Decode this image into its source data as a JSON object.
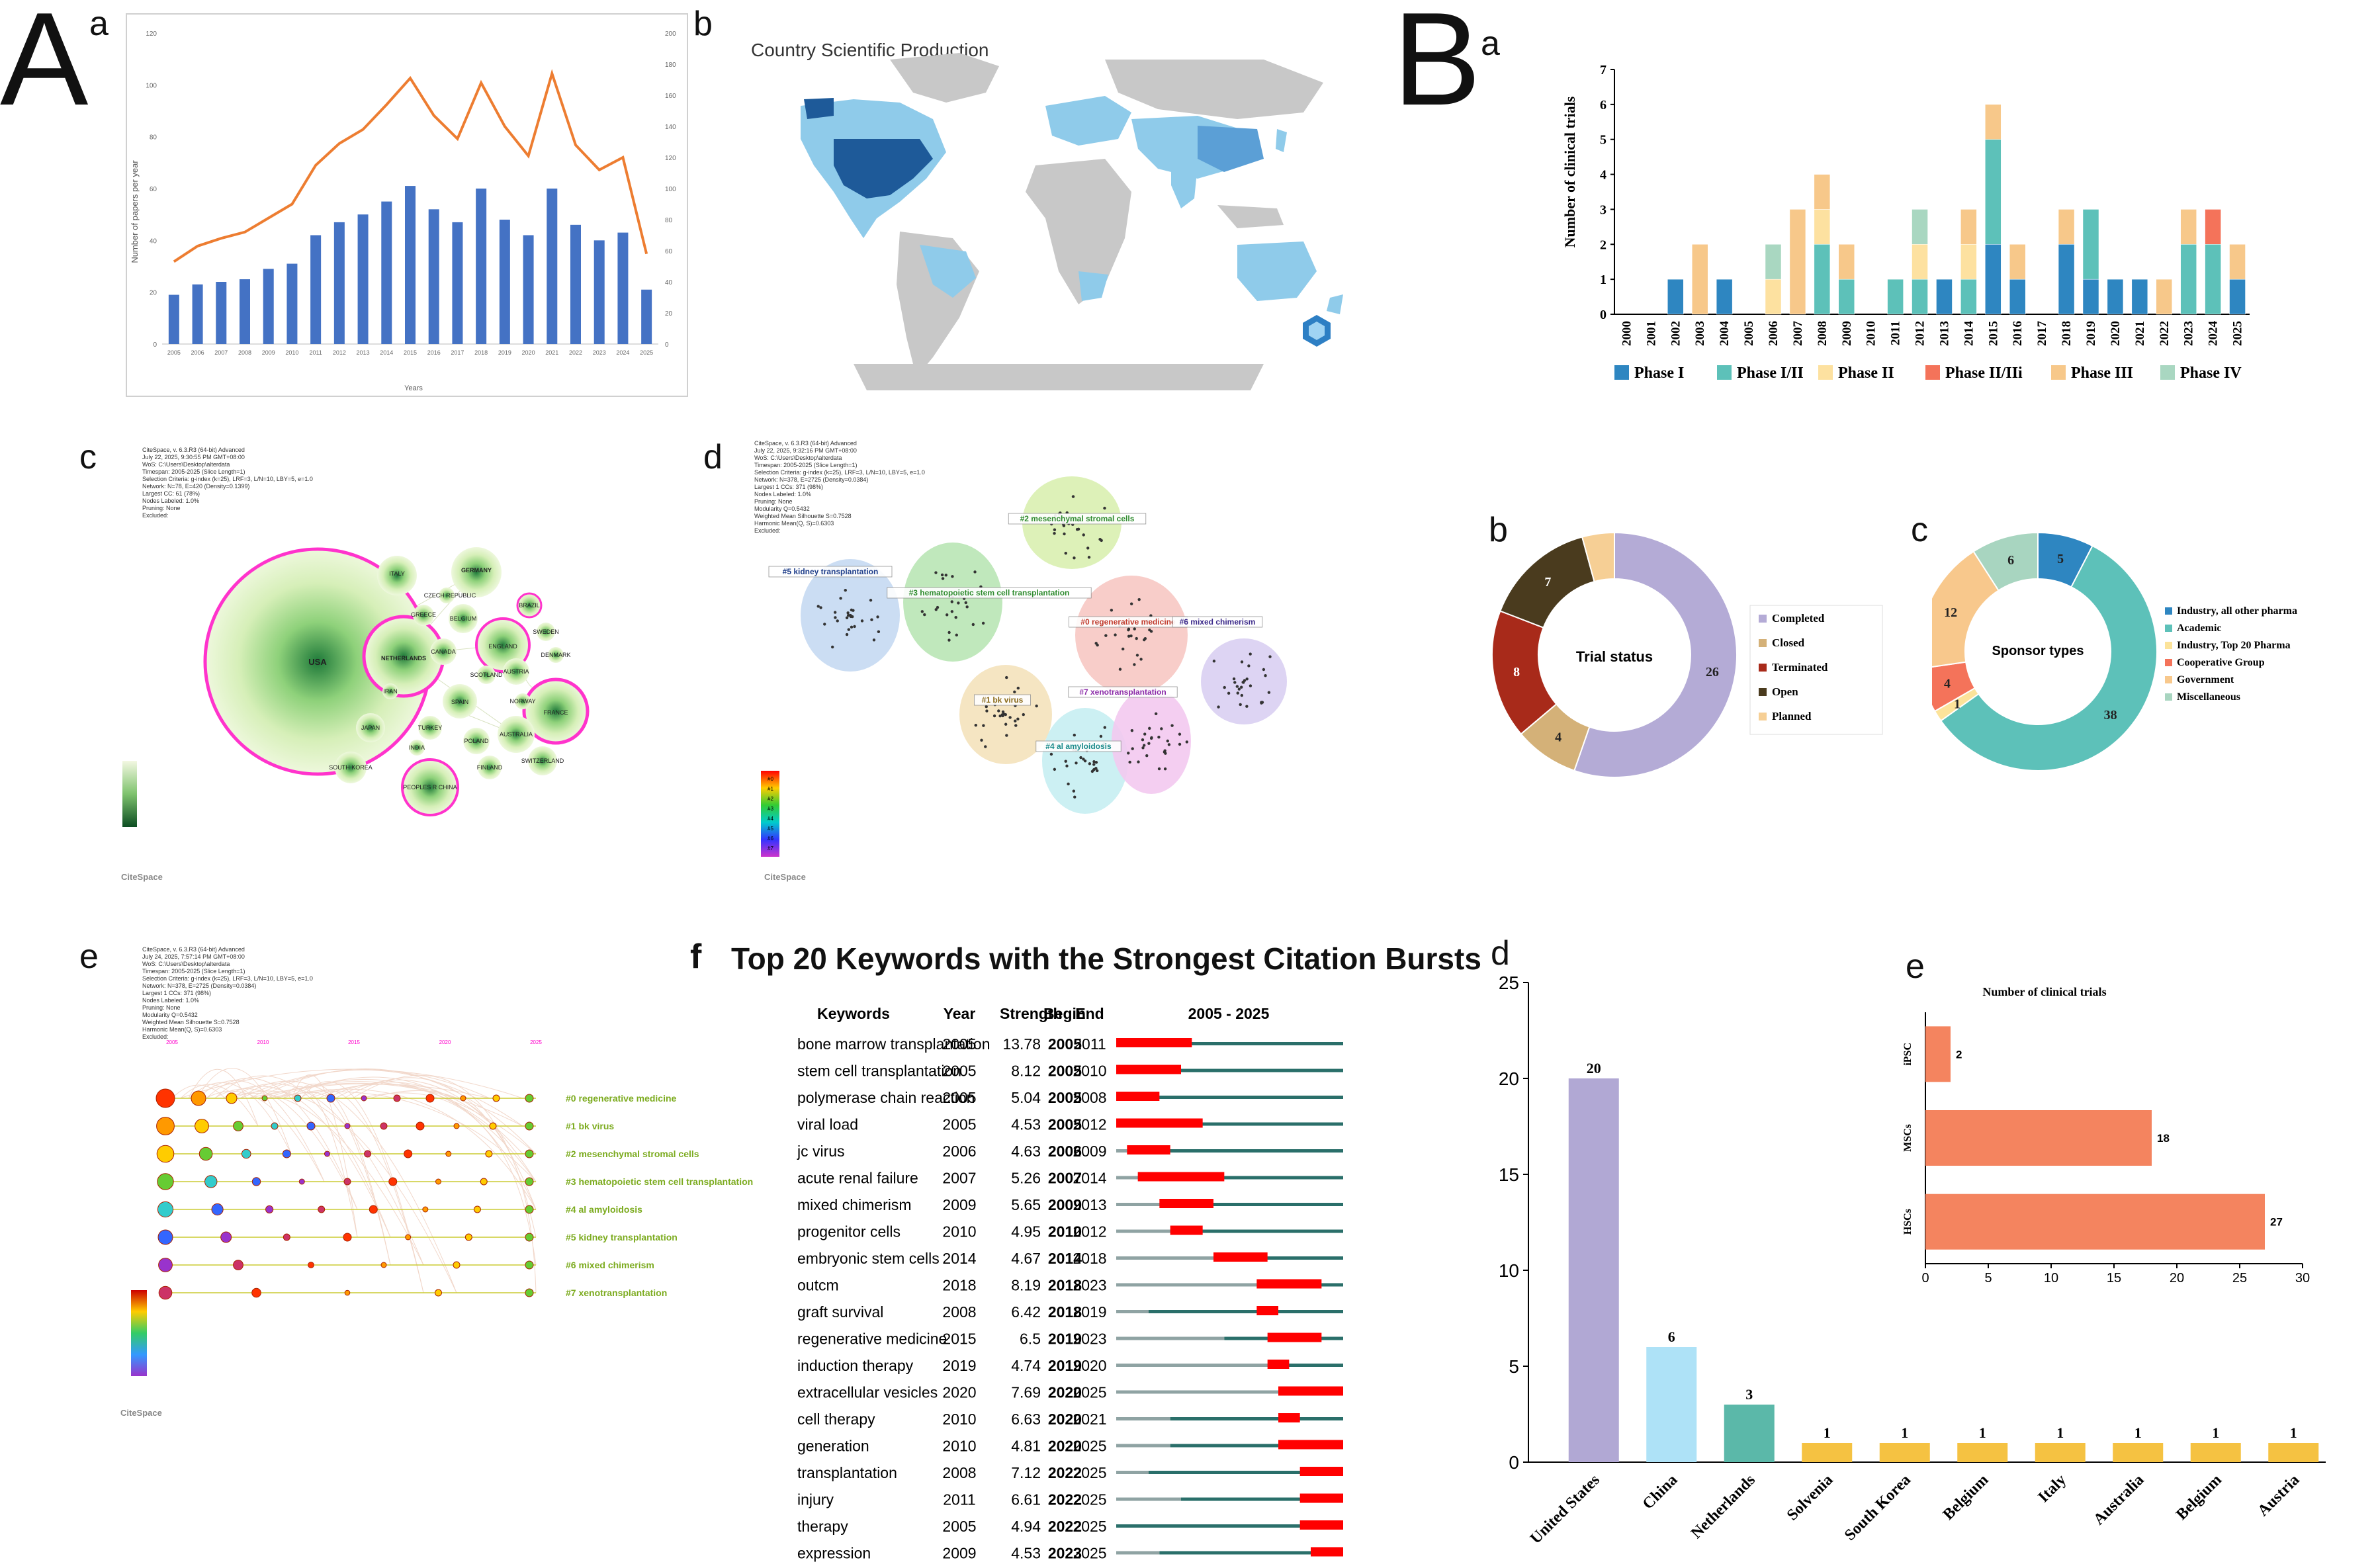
{
  "panels": {
    "A": "A",
    "B": "B",
    "a": "a",
    "b": "b",
    "c": "c",
    "d": "d",
    "e": "e",
    "f": "f",
    "Ba": "a",
    "Bb": "b",
    "Bc": "c",
    "Bd": "d",
    "Be": "e"
  },
  "colors": {
    "bar_blue": "#4472c4",
    "line_orange": "#ed7d31",
    "phase1": "#2e86c1",
    "phase12": "#5dc1b9",
    "phase2": "#fde1a0",
    "phase23": "#f4735a",
    "phase3": "#f7c88a",
    "phase4": "#a9d7c1",
    "burst_red": "#ff0000",
    "burst_teal": "#2a6f6a",
    "burst_grey": "#8fa3a3"
  },
  "map": {
    "title": "Country Scientific Production"
  },
  "citespace_info_c": "CiteSpace, v. 6.3.R3 (64-bit) Advanced\nJuly 22, 2025, 9:30:55 PM GMT+08:00\nWoS: C:\\Users\\Desktop\\alterdata\nTimespan: 2005-2025 (Slice Length=1)\nSelection Criteria: g-index (k=25), LRF=3, L/N=10, LBY=5, e=1.0\nNetwork: N=78, E=420 (Density=0.1399)\nLargest CC: 61 (78%)\nNodes Labeled: 1.0%\nPruning: None\nExcluded:",
  "citespace_info_d": "CiteSpace, v. 6.3.R3 (64-bit) Advanced\nJuly 22, 2025, 9:32:16 PM GMT+08:00\nWoS: C:\\Users\\Desktop\\alterdata\nTimespan: 2005-2025 (Slice Length=1)\nSelection Criteria: g-index (k=25), LRF=3, L/N=10, LBY=5, e=1.0\nNetwork: N=378, E=2725 (Density=0.0384)\nLargest 1 CCs: 371 (98%)\nNodes Labeled: 1.0%\nPruning: None\nModularity Q=0.5432\nWeighted Mean Silhouette S=0.7528\nHarmonic Mean(Q, S)=0.6303\nExcluded:",
  "citespace_info_e": "CiteSpace, v. 6.3.R3 (64-bit) Advanced\nJuly 24, 2025, 7:57:14 PM GMT+08:00\nWoS: C:\\Users\\Desktop\\alterdata\nTimespan: 2005-2025 (Slice Length=1)\nSelection Criteria: g-index (k=25), LRF=3, L/N=10, LBY=5, e=1.0\nNetwork: N=378, E=2725 (Density=0.0384)\nLargest 1 CCs: 371 (98%)\nNodes Labeled: 1.0%\nPruning: None\nModularity Q=0.5432\nWeighted Mean Silhouette S=0.7528\nHarmonic Mean(Q, S)=0.6303\nExcluded:",
  "citespace_logo": "CiteSpace",
  "country_network": {
    "labels": [
      "USA",
      "NETHERLANDS",
      "GERMANY",
      "ITALY",
      "ENGLAND",
      "FRANCE",
      "BELGIUM",
      "SPAIN",
      "CANADA",
      "AUSTRIA",
      "GREECE",
      "CZECH REPUBLIC",
      "SWEDEN",
      "SCOTLAND",
      "BRAZIL",
      "DENMARK",
      "AUSTRALIA",
      "TURKEY",
      "POLAND",
      "FINLAND",
      "IRAN",
      "JAPAN",
      "SOUTH KOREA",
      "PEOPLES R CHINA",
      "SWITZERLAND",
      "NORWAY",
      "INDIA"
    ]
  },
  "keyword_clusters": {
    "labels": [
      "#2 mesenchymal stromal cells",
      "#5 kidney transplantation",
      "#3 hematopoietic stem cell transplantation",
      "#0 regenerative medicine",
      "#6 mixed chimerism",
      "#7 xenotransplantation",
      "#1 bk virus",
      "#4 al amyloidosis"
    ],
    "legend": [
      "#0",
      "#1",
      "#2",
      "#3",
      "#4",
      "#5",
      "#6",
      "#7"
    ]
  },
  "timeline": {
    "years": [
      "2005",
      "2010",
      "2015",
      "2020",
      "2025"
    ],
    "labels": [
      "#0 regenerative medicine",
      "#1 bk virus",
      "#2 mesenchymal stromal cells",
      "#3 hematopoietic stem cell transplantation",
      "#4 al amyloidosis",
      "#5 kidney transplantation",
      "#6 mixed chimerism",
      "#7 xenotransplantation"
    ]
  },
  "chart_data": [
    {
      "id": "A-a",
      "type": "bar+line",
      "title": "",
      "xlabel": "Years",
      "ylabel": "Number of papers per year",
      "categories": [
        "2005",
        "2006",
        "2007",
        "2008",
        "2009",
        "2010",
        "2011",
        "2012",
        "2013",
        "2014",
        "2015",
        "2016",
        "2017",
        "2018",
        "2019",
        "2020",
        "2021",
        "2022",
        "2023",
        "2024",
        "2025"
      ],
      "ylim": [
        0,
        120
      ],
      "ylim_right": [
        0,
        200
      ],
      "yticks": [
        "0",
        "20",
        "40",
        "60",
        "80",
        "100",
        "120"
      ],
      "yticks_right": [
        "0",
        "20",
        "40",
        "60",
        "80",
        "100",
        "120",
        "140",
        "160",
        "180",
        "200"
      ],
      "series": [
        {
          "name": "Papers per year",
          "axis": "left",
          "values": [
            19,
            23,
            24,
            25,
            29,
            31,
            42,
            47,
            50,
            55,
            61,
            52,
            47,
            60,
            48,
            42,
            60,
            46,
            40,
            43,
            21
          ]
        },
        {
          "name": "Cumulative trend",
          "axis": "right",
          "values": [
            53,
            63,
            68,
            72,
            81,
            90,
            115,
            129,
            138,
            154,
            171,
            147,
            132,
            168,
            140,
            121,
            174,
            128,
            112,
            120,
            58
          ]
        }
      ]
    },
    {
      "id": "B-a",
      "type": "bar",
      "stacked": true,
      "ylabel": "Number of clinical trials",
      "categories": [
        "2000",
        "2001",
        "2002",
        "2003",
        "2004",
        "2005",
        "2006",
        "2007",
        "2008",
        "2009",
        "2010",
        "2011",
        "2012",
        "2013",
        "2014",
        "2015",
        "2016",
        "2017",
        "2018",
        "2019",
        "2020",
        "2021",
        "2022",
        "2023",
        "2024",
        "2025"
      ],
      "ylim": [
        0,
        7
      ],
      "yticks": [
        "0",
        "1",
        "2",
        "3",
        "4",
        "5",
        "6",
        "7"
      ],
      "series": [
        {
          "name": "Phase I",
          "values": [
            0,
            0,
            1,
            0,
            1,
            0,
            0,
            0,
            0,
            0,
            0,
            0,
            0,
            1,
            0,
            2,
            1,
            0,
            2,
            1,
            1,
            1,
            0,
            0,
            0,
            1
          ]
        },
        {
          "name": "Phase I/II",
          "values": [
            0,
            0,
            0,
            0,
            0,
            0,
            0,
            0,
            2,
            1,
            0,
            1,
            1,
            0,
            1,
            3,
            0,
            0,
            0,
            2,
            0,
            0,
            0,
            2,
            2,
            0
          ]
        },
        {
          "name": "Phase II",
          "values": [
            0,
            0,
            0,
            0,
            0,
            0,
            1,
            0,
            1,
            0,
            0,
            0,
            1,
            0,
            1,
            0,
            0,
            0,
            0,
            0,
            0,
            0,
            0,
            0,
            0,
            0
          ]
        },
        {
          "name": "Phase II/IIi",
          "values": [
            0,
            0,
            0,
            0,
            0,
            0,
            0,
            0,
            0,
            0,
            0,
            0,
            0,
            0,
            0,
            0,
            0,
            0,
            0,
            0,
            0,
            0,
            0,
            0,
            1,
            0
          ]
        },
        {
          "name": "Phase III",
          "values": [
            0,
            0,
            0,
            2,
            0,
            0,
            0,
            3,
            1,
            1,
            0,
            0,
            0,
            0,
            1,
            1,
            1,
            0,
            1,
            0,
            0,
            0,
            1,
            1,
            0,
            1
          ]
        },
        {
          "name": "Phase IV",
          "values": [
            0,
            0,
            0,
            0,
            0,
            0,
            1,
            0,
            0,
            0,
            0,
            0,
            1,
            0,
            0,
            0,
            0,
            0,
            0,
            0,
            0,
            0,
            0,
            0,
            0,
            0
          ]
        }
      ]
    },
    {
      "id": "B-b",
      "type": "pie",
      "donut": true,
      "title": "Trial status",
      "labels": [
        "Completed",
        "Closed",
        "Terminated",
        "Open",
        "Planned"
      ],
      "values": [
        26,
        4,
        8,
        7,
        2
      ],
      "value_labels": [
        "26",
        "4",
        "8",
        "7",
        ""
      ],
      "colors": [
        "#b4abd6",
        "#d4b178",
        "#a82a1a",
        "#4a3b1e",
        "#f6cf95"
      ]
    },
    {
      "id": "B-c",
      "type": "pie",
      "donut": true,
      "title": "Sponsor types",
      "labels": [
        "Industry, all other pharma",
        "Academic",
        "Industry, Top 20 Pharma",
        "Cooperative Group",
        "Government",
        "Miscellaneous"
      ],
      "values": [
        5,
        38,
        1,
        4,
        12,
        6
      ],
      "value_labels": [
        "5",
        "38",
        "1",
        "4",
        "12",
        "6"
      ],
      "colors": [
        "#2e86c1",
        "#5dc1b9",
        "#fce39a",
        "#f4735a",
        "#f8c88c",
        "#a8d5c0"
      ]
    },
    {
      "id": "B-d",
      "type": "bar",
      "categories": [
        "United States",
        "China",
        "Netherlands",
        "Solvenia",
        "South Korea",
        "Belgium",
        "Italy",
        "Australia",
        "Belgium",
        "Austria"
      ],
      "values": [
        20,
        6,
        3,
        1,
        1,
        1,
        1,
        1,
        1,
        1
      ],
      "ylim": [
        0,
        25
      ],
      "yticks": [
        "0",
        "5",
        "10",
        "15",
        "20",
        "25"
      ],
      "colors": [
        "#b1a8d4",
        "#aee2f7",
        "#5bb8a9",
        "#f5c242",
        "#f5c242",
        "#f5c242",
        "#f5c242",
        "#f5c242",
        "#f5c242",
        "#f5c242"
      ]
    },
    {
      "id": "B-e",
      "type": "bar",
      "orientation": "horizontal",
      "title": "Number of clinical trials",
      "categories": [
        "iPSC",
        "MSCs",
        "HSCs"
      ],
      "values": [
        2,
        18,
        27
      ],
      "xlim": [
        0,
        30
      ],
      "xticks": [
        "0",
        "5",
        "10",
        "15",
        "20",
        "25",
        "30"
      ],
      "color": "#f4845f"
    },
    {
      "id": "A-f",
      "type": "table",
      "title": "Top 20 Keywords with the Strongest Citation Bursts",
      "columns": [
        "Keywords",
        "Year",
        "Strength",
        "Begin",
        "End",
        "2005 - 2025"
      ],
      "range": [
        2005,
        2025
      ],
      "rows": [
        {
          "keyword": "bone marrow transplantation",
          "year": "2005",
          "strength": "13.78",
          "begin": "2005",
          "end": "2011"
        },
        {
          "keyword": "stem cell transplantation",
          "year": "2005",
          "strength": "8.12",
          "begin": "2005",
          "end": "2010"
        },
        {
          "keyword": "polymerase chain reaction",
          "year": "2005",
          "strength": "5.04",
          "begin": "2005",
          "end": "2008"
        },
        {
          "keyword": "viral load",
          "year": "2005",
          "strength": "4.53",
          "begin": "2005",
          "end": "2012"
        },
        {
          "keyword": "jc virus",
          "year": "2006",
          "strength": "4.63",
          "begin": "2006",
          "end": "2009"
        },
        {
          "keyword": "acute renal failure",
          "year": "2007",
          "strength": "5.26",
          "begin": "2007",
          "end": "2014"
        },
        {
          "keyword": "mixed chimerism",
          "year": "2009",
          "strength": "5.65",
          "begin": "2009",
          "end": "2013"
        },
        {
          "keyword": "progenitor cells",
          "year": "2010",
          "strength": "4.95",
          "begin": "2010",
          "end": "2012"
        },
        {
          "keyword": "embryonic stem cells",
          "year": "2014",
          "strength": "4.67",
          "begin": "2014",
          "end": "2018"
        },
        {
          "keyword": "outcm",
          "year": "2018",
          "strength": "8.19",
          "begin": "2018",
          "end": "2023"
        },
        {
          "keyword": "graft survival",
          "year": "2008",
          "strength": "6.42",
          "begin": "2018",
          "end": "2019"
        },
        {
          "keyword": "regenerative medicine",
          "year": "2015",
          "strength": "6.5",
          "begin": "2019",
          "end": "2023"
        },
        {
          "keyword": "induction therapy",
          "year": "2019",
          "strength": "4.74",
          "begin": "2019",
          "end": "2020"
        },
        {
          "keyword": "extracellular vesicles",
          "year": "2020",
          "strength": "7.69",
          "begin": "2020",
          "end": "2025"
        },
        {
          "keyword": "cell therapy",
          "year": "2010",
          "strength": "6.63",
          "begin": "2020",
          "end": "2021"
        },
        {
          "keyword": "generation",
          "year": "2010",
          "strength": "4.81",
          "begin": "2020",
          "end": "2025"
        },
        {
          "keyword": "transplantation",
          "year": "2008",
          "strength": "7.12",
          "begin": "2022",
          "end": "2025"
        },
        {
          "keyword": "injury",
          "year": "2011",
          "strength": "6.61",
          "begin": "2022",
          "end": "2025"
        },
        {
          "keyword": "therapy",
          "year": "2005",
          "strength": "4.94",
          "begin": "2022",
          "end": "2025"
        },
        {
          "keyword": "expression",
          "year": "2009",
          "strength": "4.53",
          "begin": "2023",
          "end": "2025"
        }
      ]
    }
  ]
}
